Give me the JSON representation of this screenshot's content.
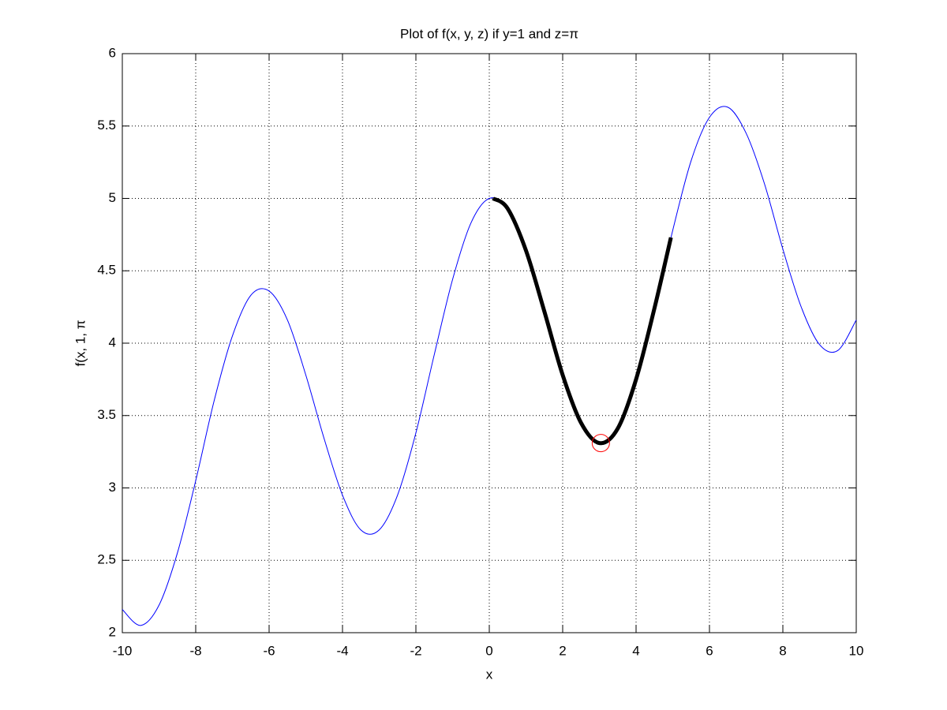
{
  "chart_data": {
    "type": "line",
    "title": "Plot of f(x, y, z) if y=1 and z=π",
    "x_label": "x",
    "y_label": "f(x, 1, π",
    "xlim": [
      -10,
      10
    ],
    "xticks": [
      -10,
      -8,
      -6,
      -4,
      -2,
      0,
      2,
      4,
      6,
      8,
      10
    ],
    "ylim": [
      2,
      6
    ],
    "yticks": [
      2,
      2.5,
      3,
      3.5,
      4,
      4.5,
      5,
      5.5,
      6
    ],
    "grid": true,
    "series": [
      {
        "style": "line",
        "color": "#0000ff",
        "x": [
          -10,
          -9.5,
          -9,
          -8.5,
          -8,
          -7.5,
          -7,
          -6.5,
          -6,
          -5.5,
          -5,
          -4.5,
          -4,
          -3.5,
          -3,
          -2.5,
          -2,
          -1.5,
          -1,
          -0.5,
          0,
          0.5,
          1,
          1.5,
          2,
          2.5,
          3,
          3.5,
          4,
          4.5,
          5,
          5.5,
          6,
          6.5,
          7,
          7.5,
          8,
          8.5,
          9,
          9.5,
          10
        ],
        "values": [
          2.16,
          2.05,
          2.19,
          2.55,
          3.05,
          3.6,
          4.05,
          4.33,
          4.36,
          4.16,
          3.78,
          3.34,
          2.95,
          2.71,
          2.71,
          2.95,
          3.38,
          3.92,
          4.44,
          4.83,
          5.0,
          4.93,
          4.64,
          4.22,
          3.78,
          3.45,
          3.31,
          3.41,
          3.75,
          4.24,
          4.78,
          5.26,
          5.56,
          5.63,
          5.45,
          5.1,
          4.65,
          4.25,
          3.99,
          3.95,
          4.16
        ]
      },
      {
        "style": "bold-line",
        "color": "#000000",
        "x": [
          0.1,
          0.5,
          1,
          1.5,
          2,
          2.5,
          3,
          3.5,
          4,
          4.5,
          4.95
        ],
        "values": [
          5.0,
          4.93,
          4.64,
          4.22,
          3.78,
          3.45,
          3.31,
          3.41,
          3.75,
          4.24,
          4.73
        ]
      },
      {
        "style": "circle-marker",
        "color": "#ff0000",
        "x": [
          3.04
        ],
        "values": [
          3.31
        ]
      }
    ]
  }
}
